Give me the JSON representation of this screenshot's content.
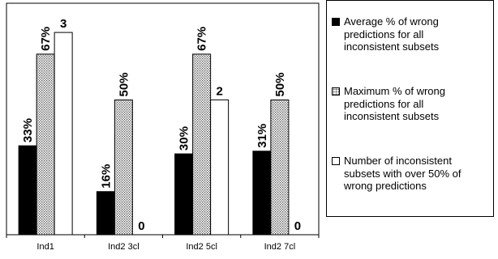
{
  "chart_data": {
    "type": "bar",
    "categories": [
      "Ind1",
      "Ind2 3cl",
      "Ind2 5cl",
      "Ind2 7cl"
    ],
    "series": [
      {
        "name": "Average % of wrong predictions for all inconsistent subsets",
        "values": [
          33,
          16,
          30,
          31
        ],
        "labels": [
          "33%",
          "16%",
          "30%",
          "31%"
        ],
        "fill": "black"
      },
      {
        "name": "Maximum % of wrong predictions for all inconsistent subsets",
        "values": [
          67,
          50,
          67,
          50
        ],
        "labels": [
          "67%",
          "50%",
          "67%",
          "50%"
        ],
        "fill": "dotted"
      },
      {
        "name": "Number of inconsistent subsets with over 50% of wrong predictions",
        "values": [
          3,
          0,
          2,
          0
        ],
        "labels": [
          "3",
          "0",
          "2",
          "0"
        ],
        "fill": "white"
      }
    ],
    "title": "",
    "xlabel": "",
    "ylabel": "",
    "ylim": [
      0,
      90
    ],
    "grid": false,
    "legend": "right"
  },
  "legend": {
    "item0": [
      "Average % of wrong",
      "predictions for all",
      "inconsistent subsets"
    ],
    "item1": [
      "Maximum % of wrong",
      "predictions for all",
      "inconsistent subsets"
    ],
    "item2": [
      "Number of inconsistent",
      "subsets with over 50% of",
      "wrong predictions"
    ]
  },
  "colors": {
    "black": "#000000",
    "dots_bg": "#ffffff",
    "dots_fg": "#555555",
    "white": "#ffffff"
  }
}
